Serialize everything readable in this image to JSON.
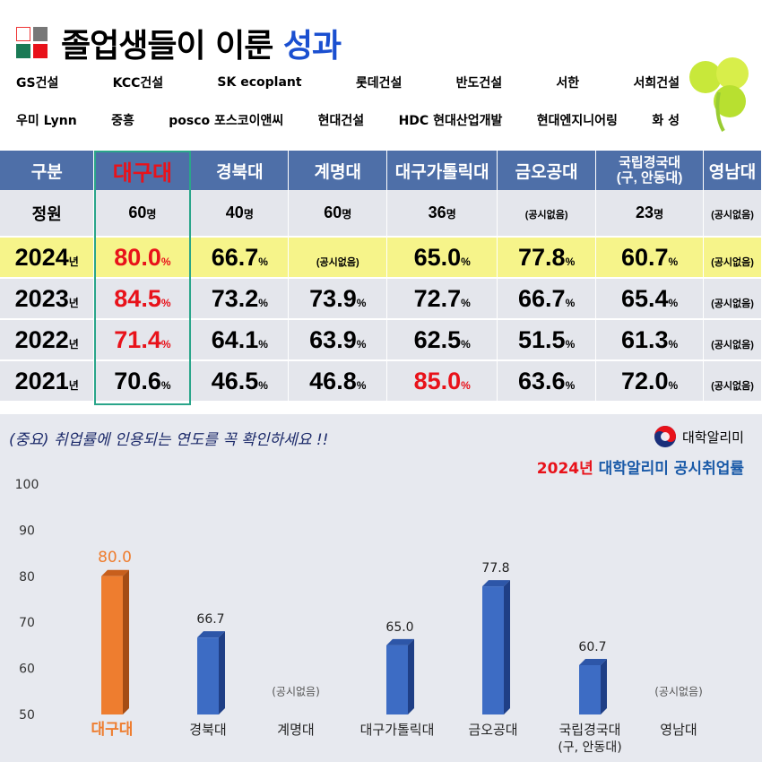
{
  "header": {
    "title_main": "졸업생들이 이룬",
    "title_highlight": "성과"
  },
  "logos": [
    [
      "GS건설",
      "KCC건설",
      "SK ecoplant",
      "롯데건설",
      "반도건설",
      "서한",
      "서희건설"
    ],
    [
      "우미 Lynn",
      "중흥",
      "posco 포스코이앤씨",
      "현대건설",
      "HDC 현대산업개발",
      "현대엔지니어링",
      "화 성"
    ]
  ],
  "table": {
    "headers": [
      "구분",
      "대구대",
      "경북대",
      "계명대",
      "대구가톨릭대",
      "금오공대",
      "국립경국대\n(구, 안동대)",
      "영남대"
    ],
    "quota": {
      "label": "정원",
      "values": [
        "60",
        "40",
        "60",
        "36",
        "(공시없음)",
        "23",
        "(공시없음)"
      ],
      "unit": "명"
    },
    "rows": [
      {
        "year": "2024",
        "values": [
          "80.0",
          "66.7",
          "(공시없음)",
          "65.0",
          "77.8",
          "60.7",
          "(공시없음)"
        ]
      },
      {
        "year": "2023",
        "values": [
          "84.5",
          "73.2",
          "73.9",
          "72.7",
          "66.7",
          "65.4",
          "(공시없음)"
        ]
      },
      {
        "year": "2022",
        "values": [
          "71.4",
          "64.1",
          "63.9",
          "62.5",
          "51.5",
          "61.3",
          "(공시없음)"
        ]
      },
      {
        "year": "2021",
        "values": [
          "70.6",
          "46.5",
          "46.8",
          "85.0",
          "63.6",
          "72.0",
          "(공시없음)"
        ]
      }
    ],
    "year_suffix": "년",
    "pct": "%"
  },
  "note": "(중요) 취업률에 인용되는 연도를 꼭 확인하세요 !!",
  "brand": "대학알리미",
  "chart_title_year": "2024년",
  "chart_title_rest": " 대학알리미 공시취업률",
  "chart_data": {
    "type": "bar",
    "title": "2024년 대학알리미 공시취업률",
    "categories": [
      "대구대",
      "경북대",
      "계명대",
      "대구가톨릭대",
      "금오공대",
      "국립경국대\n(구, 안동대)",
      "영남대"
    ],
    "values": [
      80.0,
      66.7,
      null,
      65.0,
      77.8,
      60.7,
      null
    ],
    "labels": [
      "80.0",
      "66.7",
      "(공시없음)",
      "65.0",
      "77.8",
      "60.7",
      "(공시없음)"
    ],
    "ylim": [
      50,
      100
    ],
    "yticks": [
      50,
      60,
      70,
      80,
      90,
      100
    ],
    "colors": {
      "highlight": "#ee7d2f",
      "default": "#3d6cc4"
    }
  }
}
